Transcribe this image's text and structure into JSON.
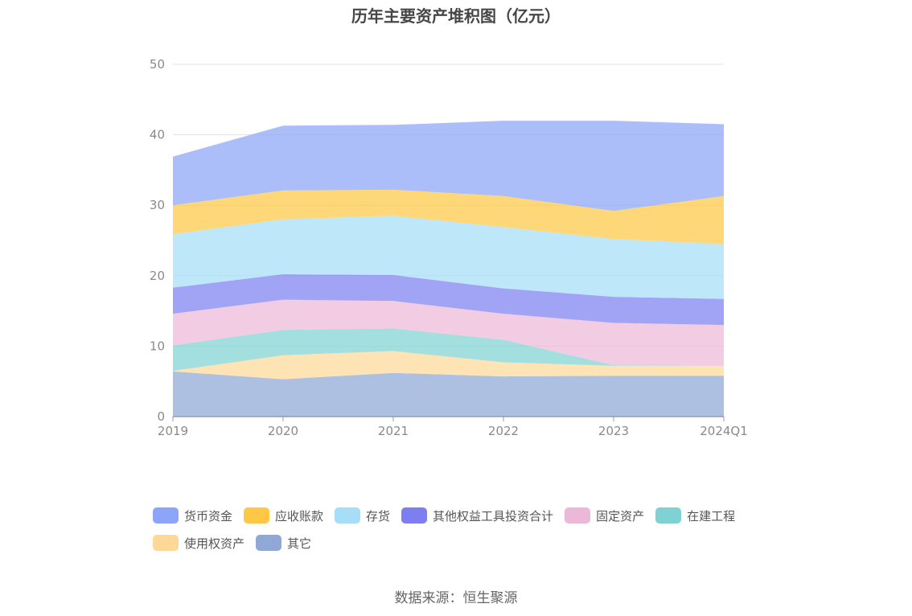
{
  "chart_data": {
    "type": "area",
    "stacked": true,
    "title": "历年主要资产堆积图（亿元）",
    "xlabel": "",
    "ylabel": "",
    "ylim": [
      0,
      50
    ],
    "yticks": [
      0,
      10,
      20,
      30,
      40,
      50
    ],
    "categories": [
      "2019",
      "2020",
      "2021",
      "2022",
      "2023",
      "2024Q1"
    ],
    "grid": true,
    "legend_position": "bottom",
    "series": [
      {
        "name": "其它",
        "color": "#8fa8d6",
        "values": [
          6.4,
          5.3,
          6.2,
          5.7,
          5.8,
          5.8
        ]
      },
      {
        "name": "使用权资产",
        "color": "#fdd897",
        "values": [
          0.1,
          3.4,
          3.1,
          2.0,
          1.4,
          1.4
        ]
      },
      {
        "name": "在建工程",
        "color": "#7fd2d3",
        "values": [
          3.6,
          3.6,
          3.2,
          3.2,
          0.1,
          0.0
        ]
      },
      {
        "name": "固定资产",
        "color": "#ecb8d8",
        "values": [
          4.5,
          4.3,
          3.9,
          3.7,
          6.0,
          5.8
        ]
      },
      {
        "name": "其他权益工具投资合计",
        "color": "#7d7ff0",
        "values": [
          3.7,
          3.6,
          3.7,
          3.6,
          3.7,
          3.7
        ]
      },
      {
        "name": "存货",
        "color": "#a6def8",
        "values": [
          7.6,
          7.8,
          8.4,
          8.7,
          8.2,
          7.8
        ]
      },
      {
        "name": "应收账款",
        "color": "#fec844",
        "values": [
          4.1,
          4.1,
          3.7,
          4.4,
          4.0,
          6.8
        ]
      },
      {
        "name": "货币资金",
        "color": "#8ca5f8",
        "values": [
          6.9,
          9.2,
          9.2,
          10.7,
          12.8,
          10.2
        ]
      }
    ]
  },
  "legend": {
    "items": [
      {
        "label": "货币资金",
        "color": "#8ca5f8"
      },
      {
        "label": "应收账款",
        "color": "#fec844"
      },
      {
        "label": "存货",
        "color": "#a6def8"
      },
      {
        "label": "其他权益工具投资合计",
        "color": "#7d7ff0"
      },
      {
        "label": "固定资产",
        "color": "#ecb8d8"
      },
      {
        "label": "在建工程",
        "color": "#7fd2d3"
      },
      {
        "label": "使用权资产",
        "color": "#fdd897"
      },
      {
        "label": "其它",
        "color": "#8fa8d6"
      }
    ]
  },
  "source": "数据来源：恒生聚源"
}
